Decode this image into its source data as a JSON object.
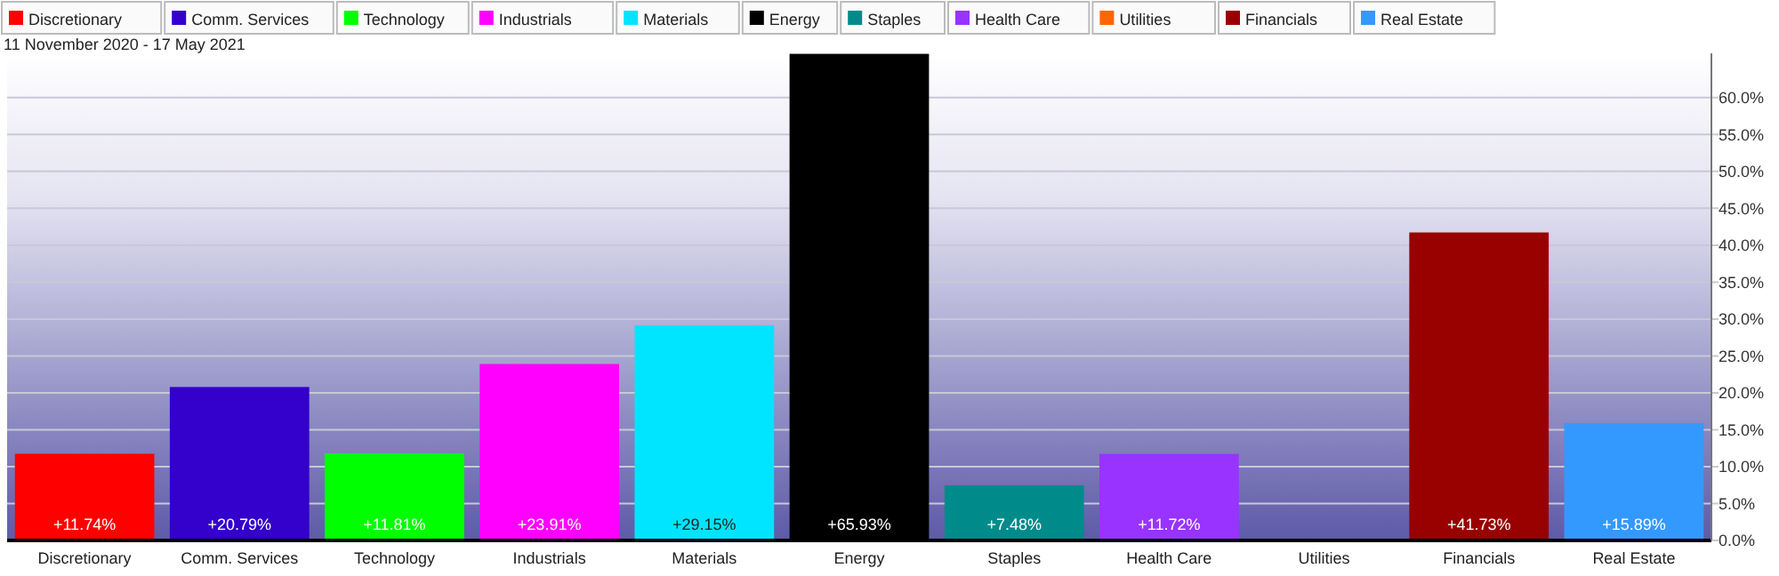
{
  "chart_data": {
    "type": "bar",
    "title": "11 November 2020 - 17 May 2021",
    "categories": [
      "Discretionary",
      "Comm. Services",
      "Technology",
      "Industrials",
      "Materials",
      "Energy",
      "Staples",
      "Health Care",
      "Utilities",
      "Financials",
      "Real Estate"
    ],
    "series": [
      {
        "name": "Discretionary",
        "color": "#ff0000",
        "values": [
          11.74,
          null,
          null,
          null,
          null,
          null,
          null,
          null,
          null,
          null,
          null
        ],
        "value_labels": [
          "+11.74%",
          null,
          null,
          null,
          null,
          null,
          null,
          null,
          null,
          null,
          null
        ]
      },
      {
        "name": "Comm. Services",
        "color": "#3300cc",
        "values": [
          null,
          20.79,
          null,
          null,
          null,
          null,
          null,
          null,
          null,
          null,
          null
        ],
        "value_labels": [
          null,
          "+20.79%",
          null,
          null,
          null,
          null,
          null,
          null,
          null,
          null,
          null
        ]
      },
      {
        "name": "Technology",
        "color": "#00ff00",
        "values": [
          null,
          null,
          11.81,
          null,
          null,
          null,
          null,
          null,
          null,
          null,
          null
        ],
        "value_labels": [
          null,
          null,
          "+11.81%",
          null,
          null,
          null,
          null,
          null,
          null,
          null,
          null
        ]
      },
      {
        "name": "Industrials",
        "color": "#ff00ff",
        "values": [
          null,
          null,
          null,
          23.91,
          null,
          null,
          null,
          null,
          null,
          null,
          null
        ],
        "value_labels": [
          null,
          null,
          null,
          "+23.91%",
          null,
          null,
          null,
          null,
          null,
          null,
          null
        ]
      },
      {
        "name": "Materials",
        "color": "#00e5ff",
        "values": [
          null,
          null,
          null,
          null,
          29.15,
          null,
          null,
          null,
          null,
          null,
          null
        ],
        "value_labels": [
          null,
          null,
          null,
          null,
          "+29.15%",
          null,
          null,
          null,
          null,
          null,
          null
        ]
      },
      {
        "name": "Energy",
        "color": "#000000",
        "values": [
          null,
          null,
          null,
          null,
          null,
          65.93,
          null,
          null,
          null,
          null,
          null
        ],
        "value_labels": [
          null,
          null,
          null,
          null,
          null,
          "+65.93%",
          null,
          null,
          null,
          null,
          null
        ]
      },
      {
        "name": "Staples",
        "color": "#008b8b",
        "values": [
          null,
          null,
          null,
          null,
          null,
          null,
          7.48,
          null,
          null,
          null,
          null
        ],
        "value_labels": [
          null,
          null,
          null,
          null,
          null,
          null,
          "+7.48%",
          null,
          null,
          null,
          null
        ]
      },
      {
        "name": "Health Care",
        "color": "#9933ff",
        "values": [
          null,
          null,
          null,
          null,
          null,
          null,
          null,
          11.72,
          null,
          null,
          null
        ],
        "value_labels": [
          null,
          null,
          null,
          null,
          null,
          null,
          null,
          "+11.72%",
          null,
          null,
          null
        ]
      },
      {
        "name": "Utilities",
        "color": "#ff6600",
        "values": [
          null,
          null,
          null,
          null,
          null,
          null,
          null,
          null,
          null,
          null,
          null
        ]
      },
      {
        "name": "Financials",
        "color": "#990000",
        "values": [
          null,
          null,
          null,
          null,
          null,
          null,
          null,
          null,
          null,
          41.73,
          null
        ],
        "value_labels": [
          null,
          null,
          null,
          null,
          null,
          null,
          null,
          null,
          null,
          "+41.73%",
          null
        ]
      },
      {
        "name": "Real Estate",
        "color": "#3399ff",
        "values": [
          null,
          null,
          null,
          null,
          null,
          null,
          null,
          null,
          null,
          null,
          15.89
        ],
        "value_labels": [
          null,
          null,
          null,
          null,
          null,
          null,
          null,
          null,
          null,
          null,
          "+15.89%"
        ]
      }
    ],
    "stacked": true,
    "ylim": [
      0,
      66
    ],
    "yticks": [
      {
        "value": 0,
        "label": "0.0%"
      },
      {
        "value": 5,
        "label": "5.0%"
      },
      {
        "value": 10,
        "label": "10.0%"
      },
      {
        "value": 15,
        "label": "15.0%"
      },
      {
        "value": 20,
        "label": "20.0%"
      },
      {
        "value": 25,
        "label": "25.0%"
      },
      {
        "value": 30,
        "label": "30.0%"
      },
      {
        "value": 35,
        "label": "35.0%"
      },
      {
        "value": 40,
        "label": "40.0%"
      },
      {
        "value": 45,
        "label": "45.0%"
      },
      {
        "value": 50,
        "label": "50.0%"
      },
      {
        "value": 55,
        "label": "55.0%"
      },
      {
        "value": 60,
        "label": "60.0%"
      }
    ],
    "grid": "y",
    "legend": "top left"
  }
}
